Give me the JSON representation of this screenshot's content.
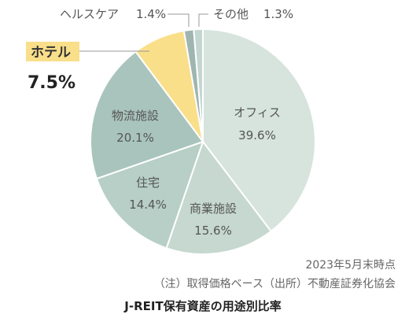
{
  "chart_data": {
    "type": "pie",
    "title": "J-REIT保有資産の用途別比率",
    "slices": [
      {
        "label": "オフィス",
        "value": 39.6,
        "display": "39.6%",
        "color": "#d6e4dd"
      },
      {
        "label": "商業施設",
        "value": 15.6,
        "display": "15.6%",
        "color": "#c6d8d0"
      },
      {
        "label": "住宅",
        "value": 14.4,
        "display": "14.4%",
        "color": "#b7cfc6"
      },
      {
        "label": "物流施設",
        "value": 20.1,
        "display": "20.1%",
        "color": "#a9c4bc"
      },
      {
        "label": "ホテル",
        "value": 7.5,
        "display": "7.5%",
        "color": "#f9df8a",
        "highlight": true
      },
      {
        "label": "ヘルスケア",
        "value": 1.4,
        "display": "1.4%",
        "color": "#9fb5b0"
      },
      {
        "label": "その他",
        "value": 1.3,
        "display": "1.3%",
        "color": "#c4d6d0"
      }
    ],
    "notes": [
      "2023年5月末時点",
      "（注）取得価格ベース（出所）不動産証券化協会"
    ]
  }
}
